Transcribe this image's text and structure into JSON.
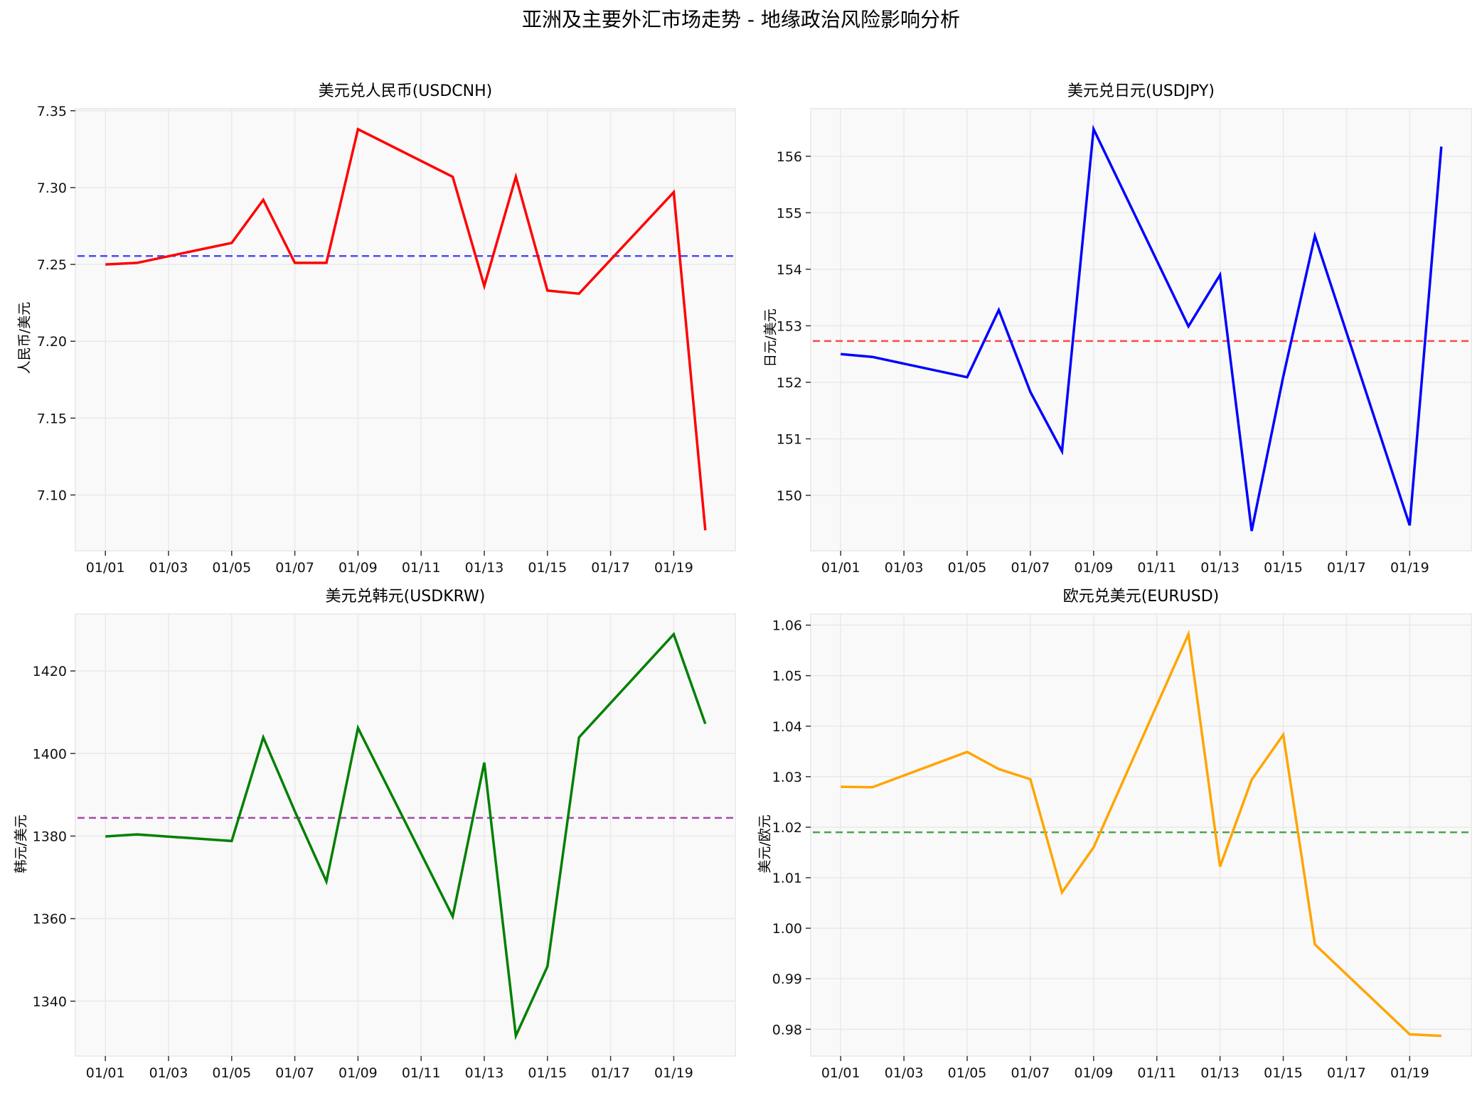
{
  "figure": {
    "suptitle": "亚洲及主要外汇市场走势 - 地缘政治风险影响分析",
    "background": "#ffffff",
    "axes_facecolor": "#f9f9f9",
    "grid_color": "#e9e9e9"
  },
  "chart_data": [
    {
      "type": "line",
      "title": "美元兑人民币(USDCNH)",
      "xlabel": "",
      "ylabel": "人民币/美元",
      "x": [
        "01/01",
        "01/02",
        "01/05",
        "01/06",
        "01/07",
        "01/08",
        "01/09",
        "01/12",
        "01/13",
        "01/14",
        "01/15",
        "01/16",
        "01/19",
        "01/20"
      ],
      "x_day": [
        1,
        2,
        5,
        6,
        7,
        8,
        9,
        12,
        13,
        14,
        15,
        16,
        19,
        20
      ],
      "xticks": [
        "01/01",
        "01/03",
        "01/05",
        "01/07",
        "01/09",
        "01/11",
        "01/13",
        "01/15",
        "01/17",
        "01/19"
      ],
      "series": [
        {
          "name": "USDCNH",
          "color": "#ff0000",
          "values": [
            7.25,
            7.251,
            7.264,
            7.292,
            7.251,
            7.251,
            7.338,
            7.307,
            7.236,
            7.307,
            7.233,
            7.231,
            7.297,
            7.077
          ]
        }
      ],
      "mean_line": {
        "value": 7.2555,
        "color": "#0000ff",
        "style": "dashed"
      },
      "yticks": [
        7.1,
        7.15,
        7.2,
        7.25,
        7.3,
        7.35
      ],
      "ytick_labels": [
        "7.10",
        "7.15",
        "7.20",
        "7.25",
        "7.30",
        "7.35"
      ],
      "ylim": [
        7.0637,
        7.3513
      ],
      "grid": true
    },
    {
      "type": "line",
      "title": "美元兑日元(USDJPY)",
      "xlabel": "",
      "ylabel": "日元/美元",
      "x": [
        "01/01",
        "01/02",
        "01/05",
        "01/06",
        "01/07",
        "01/08",
        "01/09",
        "01/12",
        "01/13",
        "01/14",
        "01/15",
        "01/16",
        "01/19",
        "01/20"
      ],
      "x_day": [
        1,
        2,
        5,
        6,
        7,
        8,
        9,
        12,
        13,
        14,
        15,
        16,
        19,
        20
      ],
      "xticks": [
        "01/01",
        "01/03",
        "01/05",
        "01/07",
        "01/09",
        "01/11",
        "01/13",
        "01/15",
        "01/17",
        "01/19"
      ],
      "series": [
        {
          "name": "USDJPY",
          "color": "#0000ff",
          "values": [
            152.5,
            152.45,
            152.09,
            153.28,
            151.83,
            150.78,
            156.48,
            152.99,
            153.9,
            149.37,
            152.1,
            154.59,
            149.47,
            156.17
          ]
        }
      ],
      "mean_line": {
        "value": 152.73,
        "color": "#ff0000",
        "style": "dashed"
      },
      "yticks": [
        150,
        151,
        152,
        153,
        154,
        155,
        156
      ],
      "ytick_labels": [
        "150",
        "151",
        "152",
        "153",
        "154",
        "155",
        "156"
      ],
      "ylim": [
        149.02,
        156.84
      ],
      "grid": true
    },
    {
      "type": "line",
      "title": "美元兑韩元(USDKRW)",
      "xlabel": "",
      "ylabel": "韩元/美元",
      "x": [
        "01/01",
        "01/02",
        "01/05",
        "01/06",
        "01/07",
        "01/08",
        "01/09",
        "01/12",
        "01/13",
        "01/14",
        "01/15",
        "01/16",
        "01/19",
        "01/20"
      ],
      "x_day": [
        1,
        2,
        5,
        6,
        7,
        8,
        9,
        12,
        13,
        14,
        15,
        16,
        19,
        20
      ],
      "xticks": [
        "01/01",
        "01/03",
        "01/05",
        "01/07",
        "01/09",
        "01/11",
        "01/13",
        "01/15",
        "01/17",
        "01/19"
      ],
      "series": [
        {
          "name": "USDKRW",
          "color": "#008000",
          "values": [
            1379.9,
            1380.4,
            1378.8,
            1403.9,
            1386.0,
            1369.0,
            1406.2,
            1360.5,
            1397.8,
            1331.6,
            1348.4,
            1403.9,
            1428.9,
            1407.2
          ]
        }
      ],
      "mean_line": {
        "value": 1384.4,
        "color": "#800080",
        "style": "dashed"
      },
      "yticks": [
        1340,
        1360,
        1380,
        1400,
        1420
      ],
      "ytick_labels": [
        "1340",
        "1360",
        "1380",
        "1400",
        "1420"
      ],
      "ylim": [
        1326.7,
        1433.8
      ],
      "grid": true
    },
    {
      "type": "line",
      "title": "欧元兑美元(EURUSD)",
      "xlabel": "",
      "ylabel": "美元/欧元",
      "x": [
        "01/01",
        "01/02",
        "01/05",
        "01/06",
        "01/07",
        "01/08",
        "01/09",
        "01/12",
        "01/13",
        "01/14",
        "01/15",
        "01/16",
        "01/19",
        "01/20"
      ],
      "x_day": [
        1,
        2,
        5,
        6,
        7,
        8,
        9,
        12,
        13,
        14,
        15,
        16,
        19,
        20
      ],
      "xticks": [
        "01/01",
        "01/03",
        "01/05",
        "01/07",
        "01/09",
        "01/11",
        "01/13",
        "01/15",
        "01/17",
        "01/19"
      ],
      "series": [
        {
          "name": "EURUSD",
          "color": "#ffa500",
          "values": [
            1.028,
            1.0279,
            1.0349,
            1.0315,
            1.0295,
            1.0071,
            1.016,
            1.0582,
            1.0122,
            1.0294,
            1.0383,
            0.9968,
            0.979,
            0.9787
          ]
        }
      ],
      "mean_line": {
        "value": 1.019,
        "color": "#008000",
        "style": "dashed"
      },
      "yticks": [
        0.98,
        0.99,
        1.0,
        1.01,
        1.02,
        1.03,
        1.04,
        1.05,
        1.06
      ],
      "ytick_labels": [
        "0.98",
        "0.99",
        "1.00",
        "1.01",
        "1.02",
        "1.03",
        "1.04",
        "1.05",
        "1.06"
      ],
      "ylim": [
        0.9747,
        1.0622
      ],
      "grid": true
    }
  ]
}
